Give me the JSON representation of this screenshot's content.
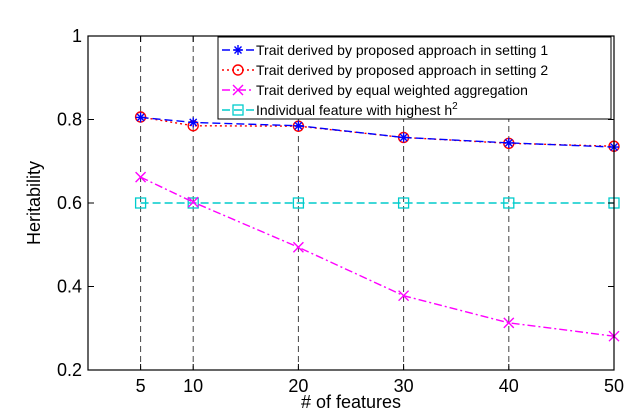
{
  "chart_data": {
    "type": "line",
    "title": "",
    "xlabel": "# of features",
    "ylabel": "Heritability",
    "x": [
      5,
      10,
      20,
      30,
      40,
      50
    ],
    "xlim": [
      0,
      50
    ],
    "ylim": [
      0.2,
      1.0
    ],
    "xticks": [
      "5",
      "10",
      "20",
      "30",
      "40",
      "50"
    ],
    "yticks": [
      "0.2",
      "0.4",
      "0.6",
      "0.8",
      "1"
    ],
    "ytick_values": [
      0.2,
      0.4,
      0.6,
      0.8,
      1.0
    ],
    "grid": "vertical dashed at x ticks",
    "legend_position": "top-right",
    "series": [
      {
        "name": "Trait derived by proposed approach in setting 1",
        "values": [
          0.805,
          0.793,
          0.785,
          0.757,
          0.744,
          0.734
        ],
        "color": "#0000ff",
        "marker": "asterisk",
        "dash": "dashed"
      },
      {
        "name": "Trait derived by proposed approach in setting 2",
        "values": [
          0.806,
          0.785,
          0.784,
          0.757,
          0.743,
          0.736
        ],
        "color": "#ff0000",
        "marker": "circle",
        "dash": "dotted"
      },
      {
        "name": "Trait derived by equal weighted aggregation",
        "values": [
          0.662,
          0.602,
          0.494,
          0.378,
          0.313,
          0.281
        ],
        "color": "#ff00ff",
        "marker": "x",
        "dash": "dashdot"
      },
      {
        "name": "Individual feature with highest h",
        "name_sup": "2",
        "values": [
          0.6,
          0.6,
          0.6,
          0.6,
          0.6,
          0.6
        ],
        "color": "#00cccc",
        "marker": "square",
        "dash": "dashed"
      }
    ]
  }
}
